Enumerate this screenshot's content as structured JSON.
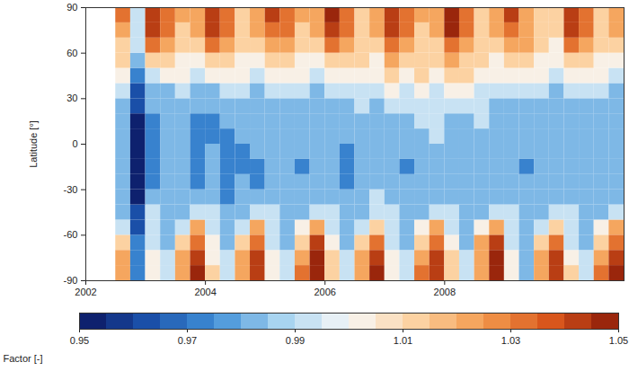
{
  "chart_data": {
    "type": "heatmap",
    "ylabel": "Latitude [°]",
    "x": [
      2002.5,
      2002.75,
      2003,
      2003.25,
      2003.5,
      2003.75,
      2004,
      2004.25,
      2004.5,
      2004.75,
      2005,
      2005.25,
      2005.5,
      2005.75,
      2006,
      2006.25,
      2006.5,
      2006.75,
      2007,
      2007.25,
      2007.5,
      2007.75,
      2008,
      2008.25,
      2008.5,
      2008.75,
      2009,
      2009.25,
      2009.5,
      2009.75,
      2010,
      2010.25,
      2010.5,
      2010.75
    ],
    "y": [
      -90,
      -80,
      -70,
      -60,
      -50,
      -40,
      -30,
      -20,
      -10,
      0,
      10,
      20,
      30,
      40,
      50,
      60,
      70,
      80
    ],
    "values": [
      [
        1.02,
        0.97,
        1.0,
        0.99,
        1.02,
        1.05,
        1.01,
        0.99,
        1.02,
        1.04,
        1.0,
        0.99,
        1.03,
        1.05,
        1.01,
        0.99,
        1.02,
        1.05,
        1.0,
        0.99,
        1.03,
        1.04,
        1.01,
        0.99,
        1.02,
        1.05,
        1.0,
        0.98,
        1.02,
        1.04,
        1.01,
        0.99,
        1.03,
        1.05
      ],
      [
        1.02,
        0.97,
        1.0,
        0.99,
        1.02,
        1.04,
        1.0,
        0.99,
        1.02,
        1.04,
        1.0,
        0.99,
        1.02,
        1.05,
        1.01,
        0.99,
        1.02,
        1.04,
        1.0,
        0.99,
        1.02,
        1.04,
        1.01,
        0.99,
        1.02,
        1.05,
        1.0,
        0.98,
        1.02,
        1.04,
        1.0,
        0.99,
        1.02,
        1.04
      ],
      [
        1.01,
        0.97,
        0.99,
        0.98,
        1.01,
        1.03,
        1.0,
        0.98,
        1.01,
        1.03,
        0.99,
        0.98,
        1.01,
        1.04,
        1.0,
        0.98,
        1.01,
        1.03,
        0.99,
        0.98,
        1.01,
        1.03,
        1.0,
        0.98,
        1.02,
        1.04,
        0.99,
        0.98,
        1.01,
        1.03,
        0.99,
        0.98,
        1.01,
        1.03
      ],
      [
        0.99,
        0.96,
        0.99,
        0.98,
        0.99,
        1.02,
        0.99,
        0.98,
        0.99,
        1.02,
        0.99,
        0.98,
        1.0,
        1.02,
        0.99,
        0.98,
        0.99,
        1.01,
        0.99,
        0.98,
        1.0,
        1.02,
        0.99,
        0.98,
        1.0,
        1.02,
        0.99,
        0.98,
        0.99,
        1.01,
        0.99,
        0.98,
        1.0,
        1.02
      ],
      [
        0.98,
        0.96,
        0.99,
        0.98,
        0.98,
        0.99,
        0.99,
        0.98,
        0.98,
        0.99,
        0.99,
        0.98,
        0.98,
        0.99,
        0.99,
        0.98,
        0.98,
        0.99,
        0.99,
        0.98,
        0.98,
        0.99,
        0.99,
        0.98,
        0.98,
        0.99,
        0.99,
        0.98,
        0.98,
        0.99,
        0.99,
        0.98,
        0.98,
        0.99
      ],
      [
        0.98,
        0.95,
        0.98,
        0.98,
        0.98,
        0.98,
        0.98,
        0.97,
        0.98,
        0.98,
        0.98,
        0.98,
        0.98,
        0.98,
        0.98,
        0.98,
        0.98,
        0.99,
        0.98,
        0.98,
        0.98,
        0.98,
        0.98,
        0.98,
        0.98,
        0.98,
        0.98,
        0.98,
        0.98,
        0.98,
        0.98,
        0.98,
        0.98,
        0.98
      ],
      [
        0.98,
        0.95,
        0.97,
        0.98,
        0.98,
        0.97,
        0.98,
        0.97,
        0.98,
        0.97,
        0.98,
        0.98,
        0.98,
        0.98,
        0.98,
        0.97,
        0.98,
        0.98,
        0.98,
        0.98,
        0.98,
        0.98,
        0.98,
        0.98,
        0.98,
        0.98,
        0.98,
        0.98,
        0.98,
        0.98,
        0.98,
        0.98,
        0.98,
        0.98
      ],
      [
        0.98,
        0.95,
        0.97,
        0.98,
        0.98,
        0.97,
        0.98,
        0.97,
        0.97,
        0.97,
        0.98,
        0.98,
        0.97,
        0.98,
        0.98,
        0.97,
        0.98,
        0.98,
        0.98,
        0.97,
        0.98,
        0.98,
        0.98,
        0.98,
        0.98,
        0.98,
        0.98,
        0.97,
        0.98,
        0.98,
        0.98,
        0.98,
        0.98,
        0.98
      ],
      [
        0.98,
        0.95,
        0.97,
        0.98,
        0.98,
        0.97,
        0.98,
        0.97,
        0.97,
        0.98,
        0.98,
        0.98,
        0.98,
        0.98,
        0.98,
        0.97,
        0.98,
        0.98,
        0.98,
        0.98,
        0.98,
        0.98,
        0.98,
        0.98,
        0.98,
        0.98,
        0.98,
        0.98,
        0.98,
        0.98,
        0.98,
        0.98,
        0.98,
        0.98
      ],
      [
        0.98,
        0.95,
        0.97,
        0.98,
        0.98,
        0.97,
        0.97,
        0.97,
        0.98,
        0.98,
        0.98,
        0.98,
        0.98,
        0.98,
        0.98,
        0.98,
        0.98,
        0.98,
        0.98,
        0.98,
        0.98,
        0.99,
        0.98,
        0.98,
        0.98,
        0.98,
        0.98,
        0.98,
        0.98,
        0.98,
        0.98,
        0.98,
        0.98,
        0.98
      ],
      [
        0.98,
        0.95,
        0.97,
        0.98,
        0.98,
        0.97,
        0.97,
        0.98,
        0.98,
        0.98,
        0.98,
        0.98,
        0.98,
        0.98,
        0.98,
        0.98,
        0.98,
        0.98,
        0.98,
        0.98,
        0.99,
        0.99,
        0.98,
        0.98,
        0.99,
        0.98,
        0.98,
        0.98,
        0.98,
        0.98,
        0.98,
        0.98,
        0.98,
        0.98
      ],
      [
        0.98,
        0.96,
        0.98,
        0.98,
        0.98,
        0.98,
        0.98,
        0.98,
        0.98,
        0.98,
        0.98,
        0.98,
        0.98,
        0.98,
        0.98,
        0.98,
        0.99,
        0.98,
        0.99,
        0.99,
        0.99,
        0.99,
        0.99,
        0.99,
        0.99,
        0.98,
        0.98,
        0.98,
        0.98,
        0.98,
        0.98,
        0.98,
        0.98,
        0.98
      ],
      [
        0.99,
        0.96,
        0.98,
        0.98,
        0.99,
        0.98,
        0.98,
        0.99,
        0.99,
        0.98,
        0.99,
        0.99,
        0.99,
        0.98,
        0.99,
        0.99,
        0.99,
        0.99,
        1.0,
        0.99,
        1.0,
        0.99,
        1.0,
        1.0,
        0.99,
        0.99,
        0.99,
        0.99,
        0.99,
        0.98,
        0.99,
        0.99,
        0.99,
        0.98
      ],
      [
        1.0,
        0.97,
        0.99,
        1.0,
        1.0,
        0.99,
        1.0,
        1.0,
        1.0,
        0.99,
        1.0,
        1.0,
        1.0,
        0.99,
        1.0,
        1.0,
        1.0,
        1.0,
        1.01,
        1.0,
        1.01,
        1.0,
        1.01,
        1.01,
        1.0,
        1.0,
        1.0,
        1.0,
        1.0,
        0.99,
        1.0,
        1.0,
        1.0,
        0.99
      ],
      [
        1.01,
        0.98,
        1.01,
        1.01,
        1.0,
        1.0,
        1.01,
        1.01,
        1.0,
        1.0,
        1.01,
        1.01,
        1.0,
        1.0,
        1.01,
        1.01,
        1.01,
        1.0,
        1.02,
        1.01,
        1.01,
        1.01,
        1.02,
        1.01,
        1.01,
        1.0,
        1.01,
        1.01,
        1.0,
        1.0,
        1.01,
        1.01,
        1.0,
        1.0
      ],
      [
        1.01,
        0.99,
        1.03,
        1.02,
        1.01,
        1.01,
        1.03,
        1.02,
        1.01,
        1.01,
        1.02,
        1.02,
        1.01,
        1.01,
        1.03,
        1.02,
        1.01,
        1.01,
        1.03,
        1.02,
        1.01,
        1.01,
        1.03,
        1.02,
        1.01,
        1.01,
        1.02,
        1.02,
        1.01,
        1.0,
        1.03,
        1.02,
        1.01,
        1.01
      ],
      [
        1.02,
        0.99,
        1.04,
        1.03,
        1.01,
        1.02,
        1.04,
        1.03,
        1.01,
        1.02,
        1.03,
        1.03,
        1.01,
        1.02,
        1.04,
        1.03,
        1.01,
        1.02,
        1.04,
        1.03,
        1.01,
        1.02,
        1.05,
        1.03,
        1.01,
        1.02,
        1.03,
        1.02,
        1.01,
        1.01,
        1.04,
        1.03,
        1.01,
        1.02
      ],
      [
        1.03,
        0.99,
        1.04,
        1.03,
        1.02,
        1.02,
        1.04,
        1.03,
        1.01,
        1.02,
        1.04,
        1.03,
        1.02,
        1.02,
        1.05,
        1.03,
        1.01,
        1.02,
        1.04,
        1.03,
        1.02,
        1.02,
        1.05,
        1.03,
        1.01,
        1.02,
        1.04,
        1.02,
        1.01,
        1.01,
        1.04,
        1.03,
        1.01,
        1.02
      ]
    ],
    "xlim": [
      2002,
      2011
    ],
    "xticks": [
      2002,
      2004,
      2006,
      2008
    ],
    "ylim": [
      -90,
      90
    ],
    "yticks": [
      -90,
      -60,
      -30,
      0,
      30,
      60,
      90
    ],
    "colorbar": {
      "label": "Factor [-]",
      "range": [
        0.95,
        1.05
      ],
      "ticks": [
        0.95,
        0.97,
        0.99,
        1.01,
        1.03,
        1.05
      ]
    }
  }
}
